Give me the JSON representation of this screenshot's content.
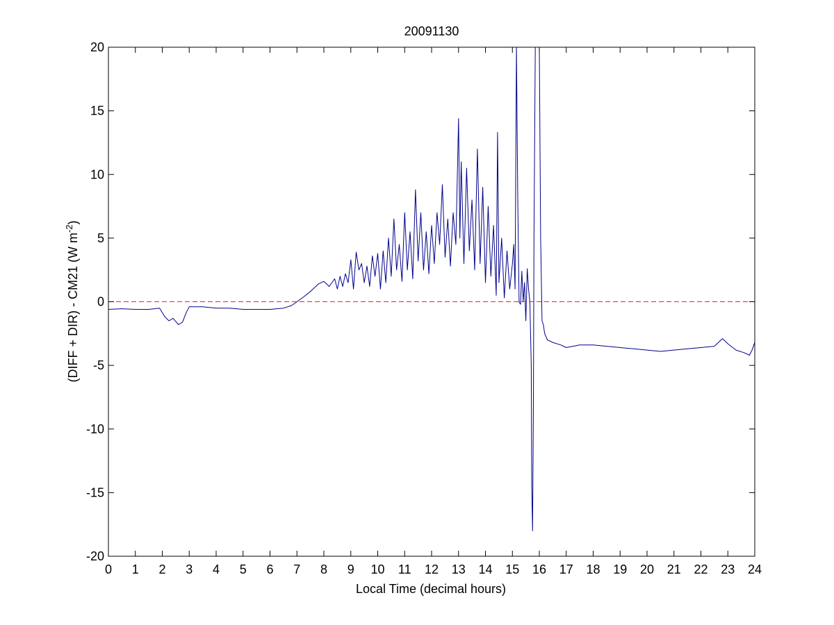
{
  "chart_data": {
    "type": "line",
    "title": "20091130",
    "xlabel": "Local Time (decimal hours)",
    "ylabel": {
      "main": "(DIFF + DIR) - CM21 (W m",
      "superscript": "-2",
      "close": ")"
    },
    "xlim": [
      0,
      24
    ],
    "ylim": [
      -20,
      20
    ],
    "xticks": [
      0,
      1,
      2,
      3,
      4,
      5,
      6,
      7,
      8,
      9,
      10,
      11,
      12,
      13,
      14,
      15,
      16,
      17,
      18,
      19,
      20,
      21,
      22,
      23,
      24
    ],
    "yticks": [
      -20,
      -15,
      -10,
      -5,
      0,
      5,
      10,
      15,
      20
    ],
    "grid": false,
    "legend": "none",
    "series": [
      {
        "color": "#00008b",
        "line_style": "solid",
        "x": [
          0,
          0.5,
          1,
          1.5,
          1.9,
          2.1,
          2.25,
          2.4,
          2.6,
          2.75,
          2.9,
          3.0,
          3.5,
          4,
          4.5,
          5,
          5.5,
          6,
          6.5,
          6.8,
          7.0,
          7.2,
          7.5,
          7.8,
          8.0,
          8.2,
          8.4,
          8.5,
          8.6,
          8.7,
          8.8,
          8.9,
          9.0,
          9.1,
          9.2,
          9.3,
          9.4,
          9.5,
          9.6,
          9.7,
          9.8,
          9.9,
          10.0,
          10.1,
          10.2,
          10.3,
          10.4,
          10.5,
          10.6,
          10.7,
          10.8,
          10.9,
          11.0,
          11.1,
          11.2,
          11.3,
          11.4,
          11.5,
          11.6,
          11.7,
          11.8,
          11.9,
          12.0,
          12.1,
          12.2,
          12.3,
          12.4,
          12.5,
          12.6,
          12.7,
          12.8,
          12.9,
          13.0,
          13.05,
          13.1,
          13.2,
          13.3,
          13.4,
          13.5,
          13.6,
          13.7,
          13.8,
          13.9,
          14.0,
          14.1,
          14.2,
          14.3,
          14.4,
          14.45,
          14.5,
          14.6,
          14.7,
          14.8,
          14.9,
          15.0,
          15.05,
          15.1,
          15.15,
          15.2,
          15.25,
          15.3,
          15.35,
          15.4,
          15.45,
          15.5,
          15.55,
          15.6,
          15.65,
          15.7,
          15.72,
          15.75,
          15.78,
          15.8,
          15.85,
          15.9,
          15.95,
          16.0,
          16.05,
          16.1,
          16.15,
          16.2,
          16.3,
          16.5,
          16.8,
          17.0,
          17.5,
          18.0,
          18.5,
          19.0,
          19.5,
          20.0,
          20.5,
          21.0,
          21.5,
          22.0,
          22.5,
          22.8,
          23.0,
          23.3,
          23.6,
          23.8,
          23.9,
          24.0
        ],
        "y": [
          -0.6,
          -0.55,
          -0.6,
          -0.6,
          -0.5,
          -1.2,
          -1.5,
          -1.3,
          -1.8,
          -1.6,
          -0.8,
          -0.4,
          -0.4,
          -0.5,
          -0.5,
          -0.6,
          -0.6,
          -0.6,
          -0.5,
          -0.3,
          0.0,
          0.3,
          0.8,
          1.4,
          1.6,
          1.2,
          1.8,
          1.0,
          2.0,
          1.2,
          2.2,
          1.5,
          3.3,
          1.0,
          3.9,
          2.5,
          3.0,
          1.5,
          2.8,
          1.2,
          3.6,
          2.0,
          3.8,
          1.0,
          4.0,
          1.5,
          5.0,
          2.0,
          6.5,
          2.5,
          4.5,
          1.6,
          7.0,
          2.5,
          5.5,
          1.8,
          8.8,
          3.2,
          7.0,
          2.5,
          5.5,
          2.2,
          6.0,
          3.0,
          7.0,
          4.5,
          9.2,
          3.5,
          6.5,
          2.8,
          7.0,
          4.5,
          14.4,
          5.0,
          11.0,
          3.0,
          10.5,
          4.0,
          8.0,
          2.5,
          12.0,
          3.0,
          9.0,
          1.5,
          7.5,
          2.0,
          6.0,
          0.5,
          13.3,
          1.5,
          5.0,
          0.3,
          4.0,
          1.0,
          3.0,
          4.5,
          1.0,
          20.0,
          8.0,
          0.0,
          -0.2,
          2.4,
          0.0,
          1.5,
          -1.5,
          2.6,
          1.0,
          0.0,
          -5.0,
          -14.5,
          -18.0,
          -8.0,
          5.0,
          20.0,
          20.0,
          20.0,
          20.0,
          5.0,
          -1.5,
          -1.8,
          -2.5,
          -3.0,
          -3.2,
          -3.4,
          -3.6,
          -3.4,
          -3.4,
          -3.5,
          -3.6,
          -3.7,
          -3.8,
          -3.9,
          -3.8,
          -3.7,
          -3.6,
          -3.5,
          -2.9,
          -3.3,
          -3.8,
          -4.0,
          -4.2,
          -3.8,
          -3.2
        ]
      },
      {
        "color": "#c83232",
        "line_style": "dashed",
        "x": [
          0,
          24
        ],
        "y": [
          0,
          0
        ]
      }
    ]
  }
}
